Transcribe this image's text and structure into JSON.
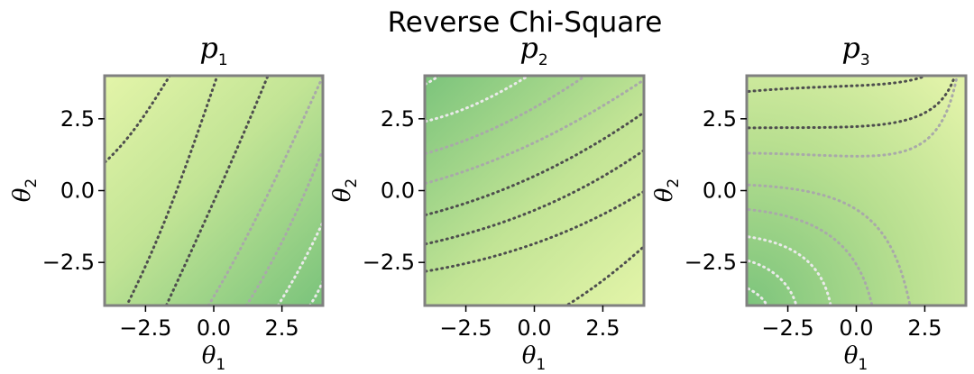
{
  "figure_title": "Reverse Chi-Square",
  "colors": {
    "light": "#e0f2a8",
    "dark": "#79c47e",
    "frame": "#808080",
    "contour_light": "#eaeaea",
    "contour_mid": "#a9a9a9",
    "contour_dark": "#4e4e4e"
  },
  "chart_data": [
    {
      "type": "heatmap",
      "title": "p",
      "title_subscript": "1",
      "xlabel": "θ",
      "xlabel_subscript": "1",
      "ylabel": "θ",
      "ylabel_subscript": "2",
      "xlim": [
        -4,
        4
      ],
      "ylim": [
        -4,
        4
      ],
      "xticks": [
        -2.5,
        0.0,
        2.5
      ],
      "yticks": [
        -2.5,
        0.0,
        2.5
      ],
      "xtick_labels": [
        "−2.5",
        "0.0",
        "2.5"
      ],
      "ytick_labels": [
        "−2.5",
        "0.0",
        "2.5"
      ],
      "contour_style": "dotted",
      "field_direction": "increases toward lower-right"
    },
    {
      "type": "heatmap",
      "title": "p",
      "title_subscript": "2",
      "xlabel": "θ",
      "xlabel_subscript": "1",
      "ylabel": "θ",
      "ylabel_subscript": "2",
      "xlim": [
        -4,
        4
      ],
      "ylim": [
        -4,
        4
      ],
      "xticks": [
        -2.5,
        0.0,
        2.5
      ],
      "yticks": [
        -2.5,
        0.0,
        2.5
      ],
      "xtick_labels": [
        "−2.5",
        "0.0",
        "2.5"
      ],
      "ytick_labels": [
        "−2.5",
        "0.0",
        "2.5"
      ],
      "contour_style": "dotted",
      "field_direction": "increases toward upper-left"
    },
    {
      "type": "heatmap",
      "title": "p",
      "title_subscript": "3",
      "xlabel": "θ",
      "xlabel_subscript": "1",
      "ylabel": "θ",
      "ylabel_subscript": "2",
      "xlim": [
        -4,
        4
      ],
      "ylim": [
        -4,
        4
      ],
      "xticks": [
        -2.5,
        0.0,
        2.5
      ],
      "yticks": [
        -2.5,
        0.0,
        2.5
      ],
      "xtick_labels": [
        "−2.5",
        "0.0",
        "2.5"
      ],
      "ytick_labels": [
        "−2.5",
        "0.0",
        "2.5"
      ],
      "contour_style": "dotted",
      "field_direction": "increases toward lower-left"
    }
  ]
}
